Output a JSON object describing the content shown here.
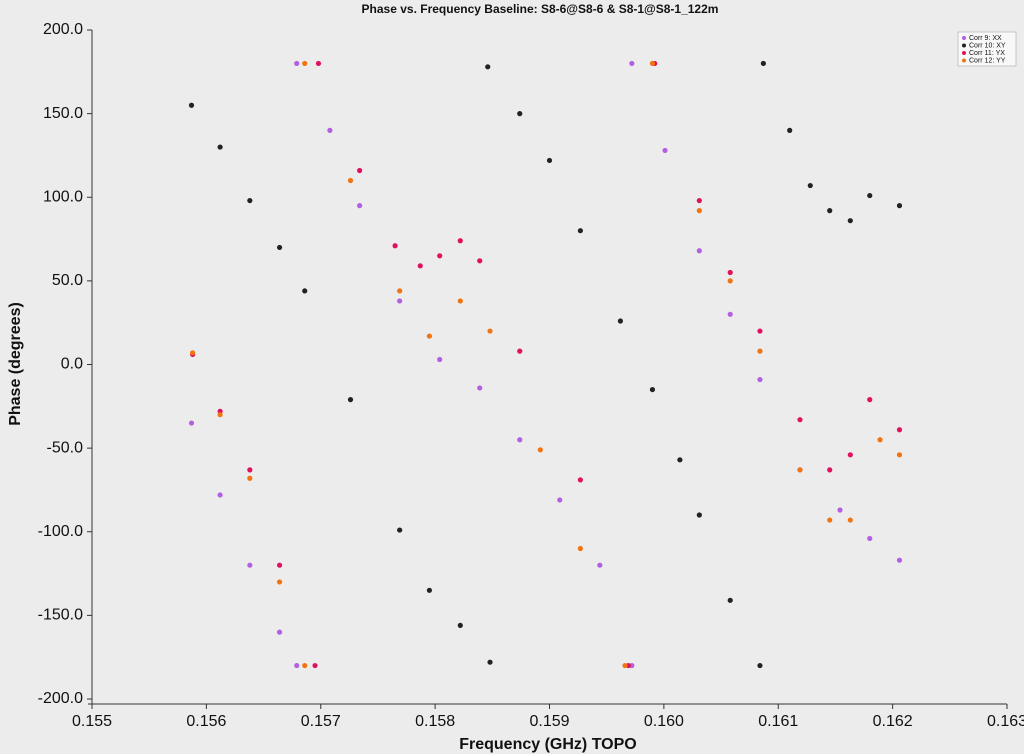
{
  "chart_data": {
    "type": "scatter",
    "title": "Phase vs. Frequency Baseline: S8-6@S8-6 & S8-1@S8-1_122m",
    "x_label": "Frequency (GHz) TOPO",
    "y_label": "Phase (degrees)",
    "xlim": [
      0.155,
      0.163
    ],
    "ylim": [
      -200,
      200
    ],
    "xticks": [
      0.155,
      0.156,
      0.157,
      0.158,
      0.159,
      {
        "value": 0.16,
        "label": "0.160"
      },
      0.161,
      0.162,
      0.163
    ],
    "yticks": [
      {
        "value": -200,
        "label": "-200.0"
      },
      {
        "value": -150,
        "label": "-150.0"
      },
      {
        "value": -100,
        "label": "-100.0"
      },
      {
        "value": -50,
        "label": "-50.0"
      },
      {
        "value": 0,
        "label": "0.0"
      },
      {
        "value": 50,
        "label": "50.0"
      },
      {
        "value": 100,
        "label": "100.0"
      },
      {
        "value": 150,
        "label": "150.0"
      },
      {
        "value": 200,
        "label": "200.0"
      }
    ],
    "legend": "top-right",
    "series": [
      {
        "name": "Corr 9: XX",
        "color": "#b35fe3",
        "x": [
          0.15587,
          0.15612,
          0.15638,
          0.15664,
          0.15679,
          0.15679,
          0.15708,
          0.15734,
          0.15769,
          0.15804,
          0.15839,
          0.15874,
          0.15909,
          0.15944,
          0.15972,
          0.15972,
          0.16001,
          0.16031,
          0.16058,
          0.16084,
          0.16119,
          0.16154,
          0.1618,
          0.16206
        ],
        "values": [
          -35,
          -78,
          -120,
          -160,
          -180,
          180,
          140,
          95,
          38,
          3,
          -14,
          -45,
          -81,
          -120,
          -180,
          180,
          128,
          68,
          30,
          -9,
          -63,
          -87,
          -104,
          -117
        ]
      },
      {
        "name": "Corr 10: XY",
        "color": "#222222",
        "x": [
          0.15587,
          0.15612,
          0.15638,
          0.15664,
          0.15686,
          0.15726,
          0.15769,
          0.15795,
          0.15822,
          0.15848,
          0.15846,
          0.15874,
          0.159,
          0.15927,
          0.15962,
          0.1599,
          0.16014,
          0.16031,
          0.16058,
          0.16084,
          0.16087,
          0.1611,
          0.16128,
          0.16145,
          0.16163,
          0.1618,
          0.16206
        ],
        "values": [
          155,
          130,
          98,
          70,
          44,
          -21,
          -99,
          -135,
          -156,
          -178,
          178,
          150,
          122,
          80,
          26,
          -15,
          -57,
          -90,
          -141,
          -180,
          180,
          140,
          107,
          92,
          86,
          101,
          95
        ]
      },
      {
        "name": "Corr 11: YX",
        "color": "#e0115f",
        "x": [
          0.15588,
          0.15612,
          0.15638,
          0.15664,
          0.15695,
          0.15698,
          0.15734,
          0.15765,
          0.15787,
          0.15804,
          0.15822,
          0.15839,
          0.15874,
          0.15927,
          0.15969,
          0.15992,
          0.16031,
          0.16058,
          0.16084,
          0.16119,
          0.16145,
          0.16163,
          0.1618,
          0.16206
        ],
        "values": [
          6,
          -28,
          -63,
          -120,
          -180,
          180,
          116,
          71,
          59,
          65,
          74,
          62,
          8,
          -69,
          -180,
          180,
          98,
          55,
          20,
          -33,
          -63,
          -54,
          -21,
          -39
        ]
      },
      {
        "name": "Corr 12: YY",
        "color": "#f07412",
        "x": [
          0.15588,
          0.15612,
          0.15638,
          0.15664,
          0.15686,
          0.15686,
          0.15726,
          0.15769,
          0.15795,
          0.15822,
          0.15848,
          0.15892,
          0.15927,
          0.15966,
          0.1599,
          0.16031,
          0.16058,
          0.16084,
          0.16119,
          0.16145,
          0.16163,
          0.16189,
          0.16206
        ],
        "values": [
          7,
          -30,
          -68,
          -130,
          -180,
          180,
          110,
          44,
          17,
          38,
          20,
          -51,
          -110,
          -180,
          180,
          92,
          50,
          8,
          -63,
          -93,
          -93,
          -45,
          -54
        ]
      }
    ]
  }
}
